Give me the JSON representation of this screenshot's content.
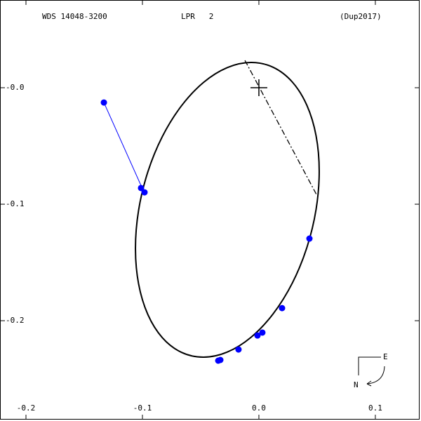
{
  "chart_data": {
    "type": "orbit",
    "title": "WDS 14048-3200",
    "subtitle": "LPR   2",
    "reference": "(Dup2017)",
    "xlim": [
      -0.2223,
      0.1392
    ],
    "ylim": [
      -0.2861,
      0.0753
    ],
    "xticks": [
      -0.2,
      -0.1,
      {
        "value": 0,
        "label": "0.0"
      },
      0.1
    ],
    "yticks": [
      {
        "value": 0,
        "label": "-0.0"
      },
      -0.1,
      -0.2
    ],
    "orbit": {
      "color": "#000000",
      "x": [
        0.0518,
        0.0491,
        0.0412,
        0.0287,
        0.0123,
        -0.0067,
        -0.0271,
        -0.0475,
        -0.0666,
        -0.0829,
        -0.0954,
        -0.1033,
        -0.106,
        -0.1033,
        -0.0954,
        -0.0829,
        -0.0666,
        -0.0475,
        -0.0271,
        -0.0067,
        0.0123,
        0.0287,
        0.0412,
        0.0491
      ],
      "y": [
        -0.0717,
        -0.1045,
        -0.1372,
        -0.1677,
        -0.194,
        -0.2142,
        -0.2269,
        -0.2313,
        -0.2271,
        -0.2146,
        -0.1946,
        -0.1684,
        -0.138,
        -0.1052,
        -0.0724,
        -0.0419,
        -0.0157,
        0.0046,
        0.0173,
        0.0217,
        0.0175,
        0.0049,
        -0.0151,
        -0.0412
      ]
    },
    "observations": {
      "color": "#0000ff",
      "x": [
        -0.1331,
        -0.1012,
        -0.0982,
        0.0434,
        0.0199,
        0.003,
        -0.0012,
        -0.0175,
        -0.0331,
        -0.0349
      ],
      "y": [
        -0.0127,
        -0.0861,
        -0.0898,
        -0.1295,
        -0.1892,
        -0.2102,
        -0.2127,
        -0.2247,
        -0.2337,
        -0.2343
      ]
    },
    "residuals": [
      {
        "x": [
          -0.1331,
          -0.0994
        ],
        "y": [
          -0.0127,
          -0.088
        ]
      }
    ],
    "node_line": {
      "x": [
        -0.012,
        0.0494
      ],
      "y": [
        0.0235,
        -0.0916
      ]
    },
    "primary": {
      "x": 0,
      "y": 0
    },
    "compass": {
      "east": "E",
      "north": "N"
    }
  }
}
